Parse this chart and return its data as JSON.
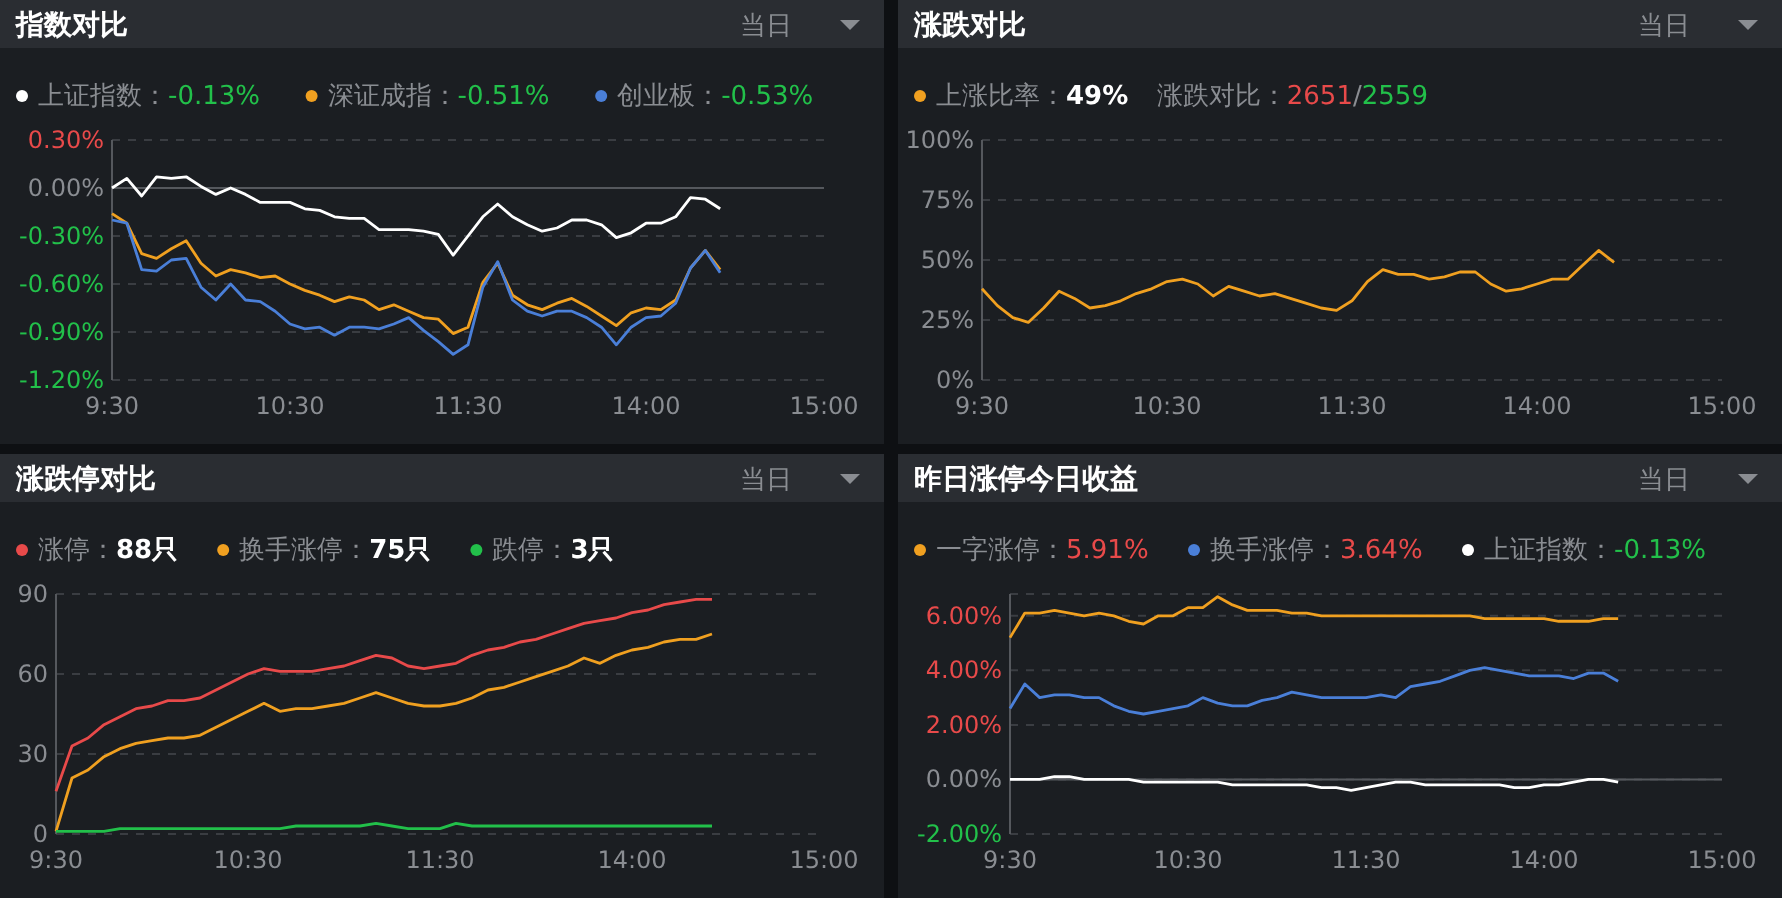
{
  "chart_data": [
    {
      "type": "line",
      "title": "指数对比",
      "annotations": [
        "当日",
        "-0.13%",
        "-0.51%",
        "-0.53%"
      ],
      "categories": [
        "9:30",
        null,
        null,
        null,
        null,
        null,
        null,
        null,
        null,
        null,
        null,
        null,
        "10:30",
        null,
        null,
        null,
        null,
        null,
        null,
        null,
        null,
        null,
        null,
        null,
        "11:30",
        null,
        null,
        null,
        null,
        null,
        null,
        null,
        null,
        null,
        null,
        null,
        "14:00",
        null,
        null,
        null,
        null,
        null,
        null,
        null,
        null,
        null,
        null,
        null,
        "15:00"
      ],
      "ylim": [
        -1.2,
        0.3
      ],
      "yticks": [
        {
          "value": 0.3,
          "label": "0.30%"
        },
        {
          "value": 0,
          "label": "0.00%"
        },
        {
          "value": -0.3,
          "label": "-0.30%"
        },
        {
          "value": -0.6,
          "label": "-0.60%"
        },
        {
          "value": -0.9,
          "label": "-0.90%"
        },
        {
          "value": -1.2,
          "label": "-1.20%"
        }
      ],
      "grid": "y",
      "legend": "top left",
      "marker": "none",
      "ref_lines": [
        {
          "axis": "y",
          "value": 0
        }
      ],
      "series": [
        {
          "name": "上证指数：",
          "color": "#ffffff",
          "values": [
            0,
            0.06,
            -0.05,
            0.07,
            0.06,
            0.07,
            0.01,
            -0.04,
            0,
            -0.04,
            -0.09,
            -0.09,
            -0.09,
            -0.13,
            -0.14,
            -0.18,
            -0.19,
            -0.19,
            -0.26,
            -0.26,
            -0.26,
            -0.27,
            -0.29,
            -0.42,
            -0.3,
            -0.18,
            -0.1,
            -0.18,
            -0.23,
            -0.27,
            -0.25,
            -0.2,
            -0.2,
            -0.23,
            -0.31,
            -0.28,
            -0.22,
            -0.22,
            -0.18,
            -0.06,
            -0.07,
            -0.13,
            null,
            null,
            null,
            null,
            null,
            null,
            null
          ]
        },
        {
          "name": "深证成指：",
          "color": "#f0a020",
          "values": [
            -0.16,
            -0.22,
            -0.41,
            -0.44,
            -0.38,
            -0.33,
            -0.47,
            -0.55,
            -0.51,
            -0.53,
            -0.56,
            -0.55,
            -0.6,
            -0.64,
            -0.67,
            -0.71,
            -0.68,
            -0.7,
            -0.76,
            -0.73,
            -0.77,
            -0.81,
            -0.82,
            -0.91,
            -0.87,
            -0.59,
            -0.47,
            -0.67,
            -0.73,
            -0.76,
            -0.72,
            -0.69,
            -0.74,
            -0.8,
            -0.86,
            -0.78,
            -0.75,
            -0.76,
            -0.7,
            -0.5,
            -0.39,
            -0.51,
            null,
            null,
            null,
            null,
            null,
            null,
            null
          ]
        },
        {
          "name": "创业板：",
          "color": "#4a7fd8",
          "values": [
            -0.2,
            -0.22,
            -0.51,
            -0.52,
            -0.45,
            -0.44,
            -0.62,
            -0.7,
            -0.6,
            -0.7,
            -0.71,
            -0.77,
            -0.85,
            -0.88,
            -0.87,
            -0.92,
            -0.87,
            -0.87,
            -0.88,
            -0.85,
            -0.81,
            -0.89,
            -0.96,
            -1.04,
            -0.98,
            -0.62,
            -0.46,
            -0.7,
            -0.77,
            -0.8,
            -0.77,
            -0.77,
            -0.81,
            -0.87,
            -0.98,
            -0.87,
            -0.81,
            -0.8,
            -0.72,
            -0.5,
            -0.39,
            -0.53,
            null,
            null,
            null,
            null,
            null,
            null,
            null
          ]
        }
      ]
    },
    {
      "type": "line",
      "title": "涨跌对比",
      "annotations": [
        "当日",
        "49%",
        "涨跌对比：2651/2559"
      ],
      "categories": [
        "9:30",
        null,
        null,
        null,
        null,
        null,
        null,
        null,
        null,
        null,
        null,
        null,
        "10:30",
        null,
        null,
        null,
        null,
        null,
        null,
        null,
        null,
        null,
        null,
        null,
        "11:30",
        null,
        null,
        null,
        null,
        null,
        null,
        null,
        null,
        null,
        null,
        null,
        "14:00",
        null,
        null,
        null,
        null,
        null,
        null,
        null,
        null,
        null,
        null,
        null,
        "15:00"
      ],
      "ylim": [
        0,
        100
      ],
      "yticks": [
        {
          "value": 0,
          "label": "0%"
        },
        {
          "value": 25,
          "label": "25%"
        },
        {
          "value": 50,
          "label": "50%"
        },
        {
          "value": 75,
          "label": "75%"
        },
        {
          "value": 100,
          "label": "100%"
        }
      ],
      "grid": "y",
      "legend": "top left",
      "marker": "none",
      "series": [
        {
          "name": "上涨比率：",
          "color": "#f0a020",
          "values": [
            38,
            31,
            26,
            24,
            30,
            37,
            34,
            30,
            31,
            33,
            36,
            38,
            41,
            42,
            40,
            35,
            39,
            37,
            35,
            36,
            34,
            32,
            30,
            29,
            33,
            41,
            46,
            44,
            44,
            42,
            43,
            45,
            45,
            40,
            37,
            38,
            40,
            42,
            42,
            48,
            54,
            49,
            null,
            null,
            null,
            null,
            null,
            null,
            null
          ]
        }
      ]
    },
    {
      "type": "line",
      "title": "涨跌停对比",
      "annotations": [
        "当日",
        "88只",
        "75只",
        "3只"
      ],
      "categories": [
        "9:30",
        null,
        null,
        null,
        null,
        null,
        null,
        null,
        null,
        null,
        null,
        null,
        "10:30",
        null,
        null,
        null,
        null,
        null,
        null,
        null,
        null,
        null,
        null,
        null,
        "11:30",
        null,
        null,
        null,
        null,
        null,
        null,
        null,
        null,
        null,
        null,
        null,
        "14:00",
        null,
        null,
        null,
        null,
        null,
        null,
        null,
        null,
        null,
        null,
        null,
        "15:00"
      ],
      "ylim": [
        0,
        90
      ],
      "yticks": [
        0,
        30,
        60,
        90
      ],
      "grid": "y",
      "legend": "top left",
      "marker": "none",
      "series": [
        {
          "name": "涨停：",
          "color": "#e84a4a",
          "values": [
            16,
            33,
            36,
            41,
            44,
            47,
            48,
            50,
            50,
            51,
            54,
            57,
            60,
            62,
            61,
            61,
            61,
            62,
            63,
            65,
            67,
            66,
            63,
            62,
            63,
            64,
            67,
            69,
            70,
            72,
            73,
            75,
            77,
            79,
            80,
            81,
            83,
            84,
            86,
            87,
            88,
            88,
            null,
            null,
            null,
            null,
            null,
            null,
            null
          ]
        },
        {
          "name": "换手涨停：",
          "color": "#f0a020",
          "values": [
            1,
            21,
            24,
            29,
            32,
            34,
            35,
            36,
            36,
            37,
            40,
            43,
            46,
            49,
            46,
            47,
            47,
            48,
            49,
            51,
            53,
            51,
            49,
            48,
            48,
            49,
            51,
            54,
            55,
            57,
            59,
            61,
            63,
            66,
            64,
            67,
            69,
            70,
            72,
            73,
            73,
            75,
            null,
            null,
            null,
            null,
            null,
            null,
            null
          ]
        },
        {
          "name": "跌停：",
          "color": "#22c04a",
          "values": [
            1,
            1,
            1,
            1,
            2,
            2,
            2,
            2,
            2,
            2,
            2,
            2,
            2,
            2,
            2,
            3,
            3,
            3,
            3,
            3,
            4,
            3,
            2,
            2,
            2,
            4,
            3,
            3,
            3,
            3,
            3,
            3,
            3,
            3,
            3,
            3,
            3,
            3,
            3,
            3,
            3,
            3,
            null,
            null,
            null,
            null,
            null,
            null,
            null
          ]
        }
      ]
    },
    {
      "type": "line",
      "title": "昨日涨停今日收益",
      "annotations": [
        "当日",
        "5.91%",
        "3.64%",
        "-0.13%"
      ],
      "categories": [
        "9:30",
        null,
        null,
        null,
        null,
        null,
        null,
        null,
        null,
        null,
        null,
        null,
        "10:30",
        null,
        null,
        null,
        null,
        null,
        null,
        null,
        null,
        null,
        null,
        null,
        "11:30",
        null,
        null,
        null,
        null,
        null,
        null,
        null,
        null,
        null,
        null,
        null,
        "14:00",
        null,
        null,
        null,
        null,
        null,
        null,
        null,
        null,
        null,
        null,
        null,
        "15:00"
      ],
      "ylim": [
        -2,
        6.8
      ],
      "yticks": [
        {
          "value": -2,
          "label": "-2.00%"
        },
        {
          "value": 0,
          "label": "0.00%"
        },
        {
          "value": 2,
          "label": "2.00%"
        },
        {
          "value": 4,
          "label": "4.00%"
        },
        {
          "value": 6,
          "label": "6.00%"
        },
        {
          "value": 6.8,
          "label": null
        }
      ],
      "grid": "y",
      "legend": "top left",
      "marker": "none",
      "ref_lines": [
        {
          "axis": "y",
          "value": 0
        }
      ],
      "series": [
        {
          "name": "一字涨停：",
          "color": "#f0a020",
          "values": [
            5.2,
            6.1,
            6.1,
            6.2,
            6.1,
            6,
            6.1,
            6,
            5.8,
            5.7,
            6,
            6,
            6.3,
            6.3,
            6.7,
            6.4,
            6.2,
            6.2,
            6.2,
            6.1,
            6.1,
            6,
            6,
            6,
            6,
            6,
            6,
            6,
            6,
            6,
            6,
            6,
            5.9,
            5.9,
            5.9,
            5.9,
            5.9,
            5.8,
            5.8,
            5.8,
            5.9,
            5.9,
            null,
            null,
            null,
            null,
            null,
            null,
            null
          ]
        },
        {
          "name": "换手涨停：",
          "color": "#4a7fd8",
          "values": [
            2.6,
            3.5,
            3,
            3.1,
            3.1,
            3,
            3,
            2.7,
            2.5,
            2.4,
            2.5,
            2.6,
            2.7,
            3,
            2.8,
            2.7,
            2.7,
            2.9,
            3,
            3.2,
            3.1,
            3,
            3,
            3,
            3,
            3.1,
            3,
            3.4,
            3.5,
            3.6,
            3.8,
            4,
            4.1,
            4,
            3.9,
            3.8,
            3.8,
            3.8,
            3.7,
            3.9,
            3.9,
            3.6,
            null,
            null,
            null,
            null,
            null,
            null,
            null
          ]
        },
        {
          "name": "上证指数：",
          "color": "#ffffff",
          "values": [
            0,
            0,
            0,
            0.1,
            0.1,
            0,
            0,
            0,
            0,
            -0.1,
            -0.1,
            -0.1,
            -0.1,
            -0.1,
            -0.1,
            -0.2,
            -0.2,
            -0.2,
            -0.2,
            -0.2,
            -0.2,
            -0.3,
            -0.3,
            -0.4,
            -0.3,
            -0.2,
            -0.1,
            -0.1,
            -0.2,
            -0.2,
            -0.2,
            -0.2,
            -0.2,
            -0.2,
            -0.3,
            -0.3,
            -0.2,
            -0.2,
            -0.1,
            0,
            0,
            -0.1,
            null,
            null,
            null,
            null,
            null,
            null,
            null
          ]
        }
      ]
    }
  ]
}
